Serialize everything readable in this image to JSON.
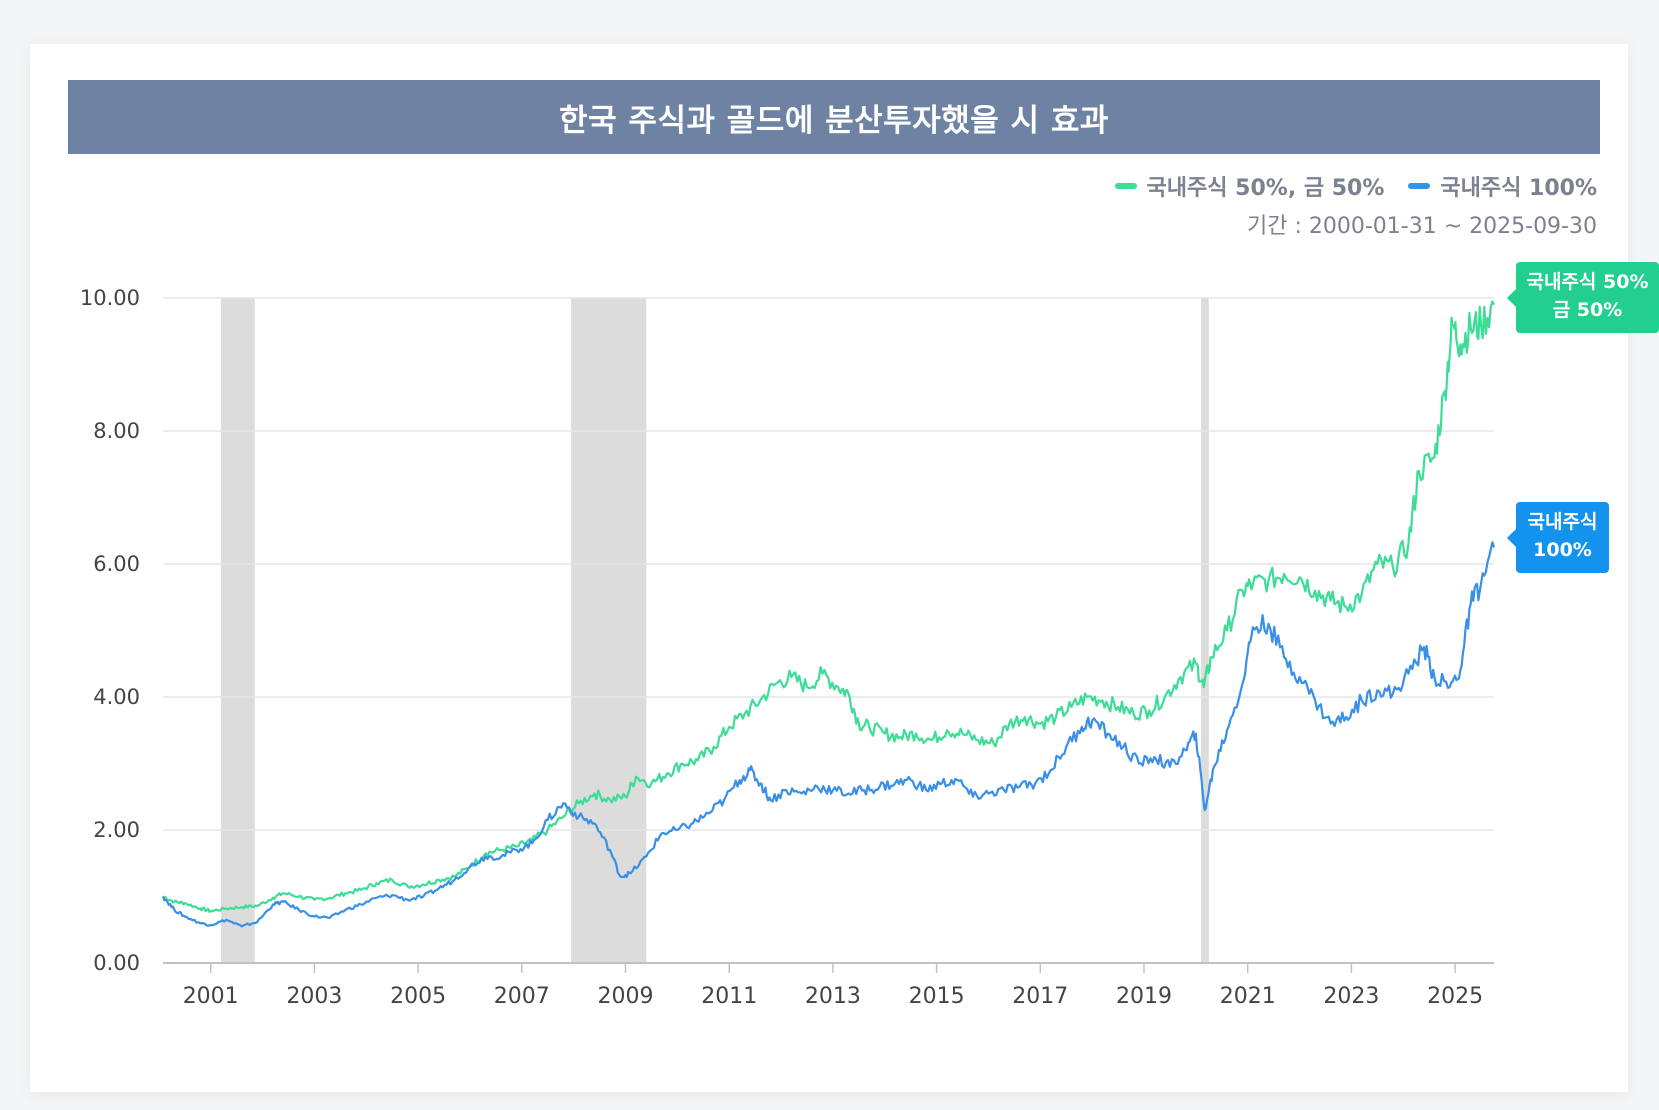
{
  "title": "한국 주식과 골드에 분산투자했을 시 효과",
  "legend": {
    "mix_label": "국내주식 50%, 금 50%",
    "stock_label": "국내주식 100%"
  },
  "period": "기간 : 2000-01-31 ~ 2025-09-30",
  "end_labels": {
    "mix_line1": "국내주식 50%",
    "mix_line2": "금 50%",
    "stock_line1": "국내주식",
    "stock_line2": "100%"
  },
  "colors": {
    "mix": "#3ddc97",
    "stock": "#3a8fe6",
    "mix_badge": "#22cf8f",
    "stock_badge": "#1493ee",
    "recession": "#dcdcdc",
    "title_bar": "#6e83a4"
  },
  "chart_data": {
    "type": "line",
    "title": "한국 주식과 골드에 분산투자했을 시 효과",
    "xlabel": "",
    "ylabel": "",
    "xlim": [
      2000.08,
      2025.75
    ],
    "ylim": [
      0,
      10
    ],
    "y_ticks": [
      "0.00",
      "2.00",
      "4.00",
      "6.00",
      "8.00",
      "10.00"
    ],
    "x_ticks": [
      "2001",
      "2003",
      "2005",
      "2007",
      "2009",
      "2011",
      "2013",
      "2015",
      "2017",
      "2019",
      "2021",
      "2023",
      "2025"
    ],
    "grid": true,
    "legend_position": "top-right",
    "shaded_periods": [
      [
        2001.2,
        2001.85
      ],
      [
        2007.95,
        2009.4
      ],
      [
        2020.1,
        2020.25
      ]
    ],
    "series": [
      {
        "name": "국내주식 50%, 금 50%",
        "points": [
          [
            2000.08,
            1.0
          ],
          [
            2000.3,
            0.92
          ],
          [
            2000.5,
            0.9
          ],
          [
            2000.8,
            0.82
          ],
          [
            2001.0,
            0.78
          ],
          [
            2001.3,
            0.82
          ],
          [
            2001.6,
            0.84
          ],
          [
            2001.9,
            0.86
          ],
          [
            2002.2,
            0.98
          ],
          [
            2002.4,
            1.05
          ],
          [
            2002.7,
            1.0
          ],
          [
            2003.0,
            0.95
          ],
          [
            2003.3,
            0.98
          ],
          [
            2003.6,
            1.05
          ],
          [
            2003.9,
            1.1
          ],
          [
            2004.2,
            1.2
          ],
          [
            2004.5,
            1.25
          ],
          [
            2004.8,
            1.15
          ],
          [
            2005.1,
            1.18
          ],
          [
            2005.4,
            1.25
          ],
          [
            2005.7,
            1.3
          ],
          [
            2006.0,
            1.45
          ],
          [
            2006.3,
            1.65
          ],
          [
            2006.6,
            1.7
          ],
          [
            2006.9,
            1.75
          ],
          [
            2007.2,
            1.85
          ],
          [
            2007.5,
            2.0
          ],
          [
            2007.8,
            2.2
          ],
          [
            2008.1,
            2.4
          ],
          [
            2008.4,
            2.55
          ],
          [
            2008.7,
            2.45
          ],
          [
            2009.0,
            2.5
          ],
          [
            2009.2,
            2.8
          ],
          [
            2009.5,
            2.7
          ],
          [
            2009.8,
            2.85
          ],
          [
            2010.1,
            3.0
          ],
          [
            2010.4,
            3.05
          ],
          [
            2010.7,
            3.25
          ],
          [
            2011.0,
            3.55
          ],
          [
            2011.3,
            3.75
          ],
          [
            2011.6,
            3.95
          ],
          [
            2011.9,
            4.2
          ],
          [
            2012.2,
            4.3
          ],
          [
            2012.5,
            4.15
          ],
          [
            2012.8,
            4.35
          ],
          [
            2013.1,
            4.15
          ],
          [
            2013.3,
            4.05
          ],
          [
            2013.5,
            3.6
          ],
          [
            2013.7,
            3.55
          ],
          [
            2014.0,
            3.45
          ],
          [
            2014.3,
            3.4
          ],
          [
            2014.6,
            3.45
          ],
          [
            2014.9,
            3.35
          ],
          [
            2015.2,
            3.5
          ],
          [
            2015.5,
            3.45
          ],
          [
            2015.8,
            3.35
          ],
          [
            2016.1,
            3.3
          ],
          [
            2016.4,
            3.6
          ],
          [
            2016.7,
            3.7
          ],
          [
            2017.0,
            3.6
          ],
          [
            2017.3,
            3.7
          ],
          [
            2017.6,
            3.85
          ],
          [
            2017.9,
            4.0
          ],
          [
            2018.2,
            3.95
          ],
          [
            2018.5,
            3.85
          ],
          [
            2018.8,
            3.75
          ],
          [
            2019.1,
            3.8
          ],
          [
            2019.4,
            4.0
          ],
          [
            2019.7,
            4.3
          ],
          [
            2020.0,
            4.5
          ],
          [
            2020.15,
            4.15
          ],
          [
            2020.3,
            4.6
          ],
          [
            2020.6,
            5.0
          ],
          [
            2020.9,
            5.6
          ],
          [
            2021.1,
            5.7
          ],
          [
            2021.4,
            5.75
          ],
          [
            2021.7,
            5.85
          ],
          [
            2022.0,
            5.8
          ],
          [
            2022.3,
            5.6
          ],
          [
            2022.6,
            5.45
          ],
          [
            2022.9,
            5.35
          ],
          [
            2023.2,
            5.55
          ],
          [
            2023.5,
            6.0
          ],
          [
            2023.8,
            5.95
          ],
          [
            2024.1,
            6.3
          ],
          [
            2024.3,
            7.4
          ],
          [
            2024.6,
            7.6
          ],
          [
            2024.8,
            8.6
          ],
          [
            2024.95,
            9.6
          ],
          [
            2025.1,
            9.3
          ],
          [
            2025.3,
            9.55
          ],
          [
            2025.5,
            9.6
          ],
          [
            2025.75,
            9.9
          ]
        ]
      },
      {
        "name": "국내주식 100%",
        "points": [
          [
            2000.08,
            1.0
          ],
          [
            2000.3,
            0.8
          ],
          [
            2000.5,
            0.7
          ],
          [
            2000.8,
            0.6
          ],
          [
            2001.0,
            0.57
          ],
          [
            2001.3,
            0.65
          ],
          [
            2001.6,
            0.55
          ],
          [
            2001.9,
            0.62
          ],
          [
            2002.2,
            0.88
          ],
          [
            2002.4,
            0.92
          ],
          [
            2002.7,
            0.8
          ],
          [
            2003.0,
            0.7
          ],
          [
            2003.3,
            0.68
          ],
          [
            2003.6,
            0.8
          ],
          [
            2003.9,
            0.88
          ],
          [
            2004.2,
            0.98
          ],
          [
            2004.5,
            1.02
          ],
          [
            2004.8,
            0.95
          ],
          [
            2005.1,
            1.0
          ],
          [
            2005.4,
            1.12
          ],
          [
            2005.7,
            1.25
          ],
          [
            2006.0,
            1.45
          ],
          [
            2006.3,
            1.6
          ],
          [
            2006.6,
            1.6
          ],
          [
            2006.9,
            1.7
          ],
          [
            2007.2,
            1.8
          ],
          [
            2007.5,
            2.15
          ],
          [
            2007.8,
            2.4
          ],
          [
            2008.1,
            2.2
          ],
          [
            2008.4,
            2.1
          ],
          [
            2008.7,
            1.7
          ],
          [
            2008.9,
            1.3
          ],
          [
            2009.1,
            1.35
          ],
          [
            2009.4,
            1.6
          ],
          [
            2009.7,
            1.95
          ],
          [
            2010.0,
            2.0
          ],
          [
            2010.3,
            2.1
          ],
          [
            2010.6,
            2.25
          ],
          [
            2010.9,
            2.45
          ],
          [
            2011.2,
            2.75
          ],
          [
            2011.4,
            2.9
          ],
          [
            2011.6,
            2.7
          ],
          [
            2011.8,
            2.45
          ],
          [
            2012.1,
            2.6
          ],
          [
            2012.4,
            2.55
          ],
          [
            2012.7,
            2.65
          ],
          [
            2013.0,
            2.6
          ],
          [
            2013.3,
            2.55
          ],
          [
            2013.6,
            2.6
          ],
          [
            2013.9,
            2.65
          ],
          [
            2014.2,
            2.7
          ],
          [
            2014.5,
            2.75
          ],
          [
            2014.8,
            2.6
          ],
          [
            2015.1,
            2.7
          ],
          [
            2015.4,
            2.75
          ],
          [
            2015.7,
            2.5
          ],
          [
            2016.0,
            2.55
          ],
          [
            2016.3,
            2.6
          ],
          [
            2016.6,
            2.65
          ],
          [
            2016.9,
            2.7
          ],
          [
            2017.2,
            2.9
          ],
          [
            2017.5,
            3.25
          ],
          [
            2017.8,
            3.55
          ],
          [
            2018.0,
            3.65
          ],
          [
            2018.3,
            3.45
          ],
          [
            2018.6,
            3.25
          ],
          [
            2018.9,
            3.0
          ],
          [
            2019.2,
            3.1
          ],
          [
            2019.5,
            2.95
          ],
          [
            2019.8,
            3.2
          ],
          [
            2020.0,
            3.45
          ],
          [
            2020.17,
            2.3
          ],
          [
            2020.35,
            2.95
          ],
          [
            2020.6,
            3.5
          ],
          [
            2020.9,
            4.2
          ],
          [
            2021.1,
            5.05
          ],
          [
            2021.4,
            5.1
          ],
          [
            2021.7,
            4.6
          ],
          [
            2022.0,
            4.3
          ],
          [
            2022.3,
            3.95
          ],
          [
            2022.6,
            3.6
          ],
          [
            2022.9,
            3.7
          ],
          [
            2023.2,
            3.95
          ],
          [
            2023.5,
            4.1
          ],
          [
            2023.8,
            4.05
          ],
          [
            2024.1,
            4.35
          ],
          [
            2024.4,
            4.75
          ],
          [
            2024.6,
            4.3
          ],
          [
            2024.9,
            4.15
          ],
          [
            2025.1,
            4.4
          ],
          [
            2025.3,
            5.4
          ],
          [
            2025.5,
            5.7
          ],
          [
            2025.75,
            6.25
          ]
        ]
      }
    ]
  }
}
